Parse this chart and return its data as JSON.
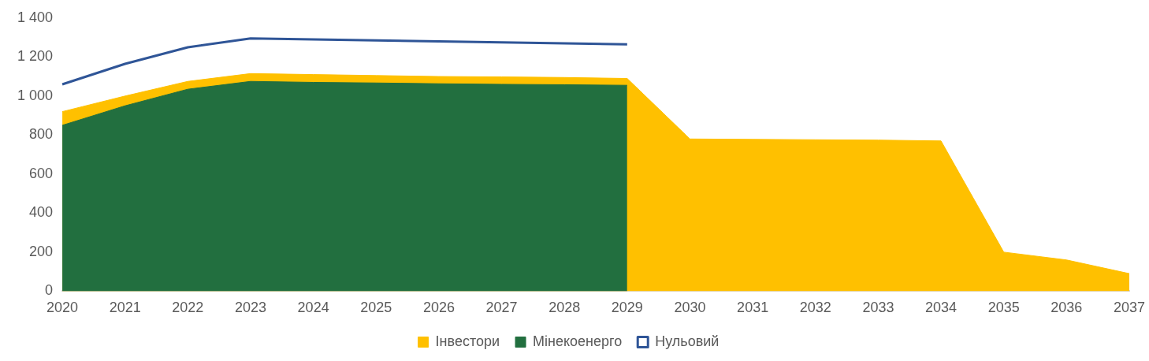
{
  "chart_data": {
    "type": "area",
    "categories": [
      "2020",
      "2021",
      "2022",
      "2023",
      "2024",
      "2025",
      "2026",
      "2027",
      "2028",
      "2029",
      "2030",
      "2031",
      "2032",
      "2033",
      "2034",
      "2035",
      "2036",
      "2037"
    ],
    "series": [
      {
        "name": "Інвестори",
        "color": "#ffc000",
        "values": [
          920,
          1000,
          1075,
          1115,
          1110,
          1105,
          1100,
          1098,
          1095,
          1090,
          780,
          778,
          776,
          774,
          770,
          200,
          160,
          90
        ]
      },
      {
        "name": "Мінекоенерго",
        "color": "#226f3f",
        "values": [
          850,
          950,
          1035,
          1075,
          1070,
          1067,
          1063,
          1060,
          1058,
          1055,
          null,
          null,
          null,
          null,
          null,
          null,
          null,
          null
        ]
      },
      {
        "name": "Нульовий",
        "type": "line",
        "color": "#2f5597",
        "values": [
          1060,
          1165,
          1250,
          1295,
          1290,
          1285,
          1280,
          1275,
          1270,
          1265,
          null,
          null,
          null,
          null,
          null,
          null,
          null,
          null
        ]
      }
    ],
    "ylim": [
      0,
      1400
    ],
    "yticks": [
      0,
      200,
      400,
      600,
      800,
      {
        "value": 1000,
        "label": "1 000"
      },
      {
        "value": 1200,
        "label": "1 200"
      },
      {
        "value": 1400,
        "label": "1 400"
      }
    ],
    "grid": false,
    "legend": "bottom"
  }
}
